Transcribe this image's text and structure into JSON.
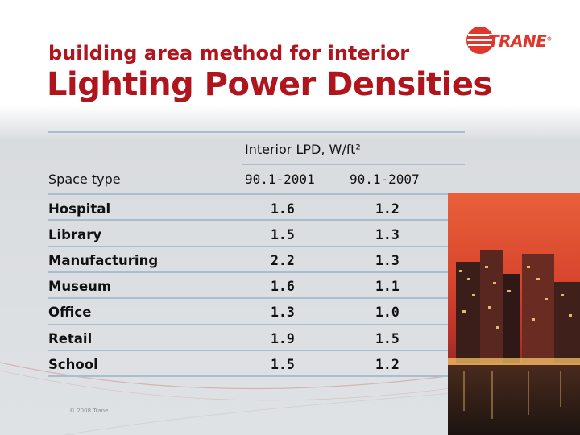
{
  "slide": {
    "subtitle": "building area method for interior",
    "title": "Lighting Power Densities",
    "logo_text": "TRANE",
    "copyright": "© 2008 Trane",
    "colors": {
      "title_red": "#b0151d",
      "logo_red": "#e0362b",
      "rule_blue": "#a9bdd1"
    }
  },
  "table": {
    "group_header": "Interior LPD, W/ft²",
    "columns": [
      "Space type",
      "90.1-2001",
      "90.1-2007"
    ],
    "rows": [
      {
        "space": "Hospital",
        "v2001": "1.6",
        "v2007": "1.2"
      },
      {
        "space": "Library",
        "v2001": "1.5",
        "v2007": "1.3"
      },
      {
        "space": "Manufacturing",
        "v2001": "2.2",
        "v2007": "1.3"
      },
      {
        "space": "Museum",
        "v2001": "1.6",
        "v2007": "1.1"
      },
      {
        "space": "Office",
        "v2001": "1.3",
        "v2007": "1.0"
      },
      {
        "space": "Retail",
        "v2001": "1.9",
        "v2007": "1.5"
      },
      {
        "space": "School",
        "v2001": "1.5",
        "v2007": "1.2"
      }
    ]
  }
}
